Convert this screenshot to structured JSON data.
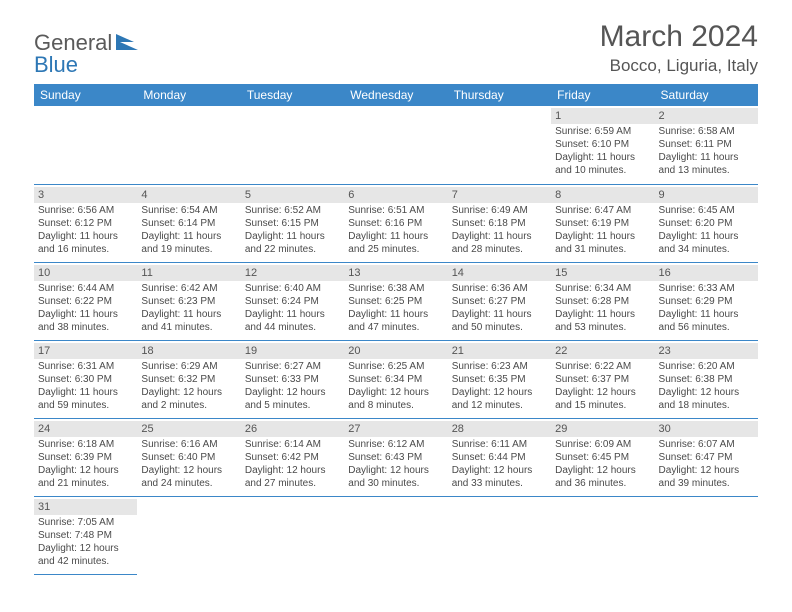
{
  "logo": {
    "text1": "General",
    "text2": "Blue"
  },
  "title": "March 2024",
  "location": "Bocco, Liguria, Italy",
  "colors": {
    "header_bg": "#3b87c8",
    "header_fg": "#ffffff",
    "daynum_bg": "#e6e6e6",
    "border": "#3b87c8",
    "text": "#4a4a4a"
  },
  "weekdays": [
    "Sunday",
    "Monday",
    "Tuesday",
    "Wednesday",
    "Thursday",
    "Friday",
    "Saturday"
  ],
  "weeks": [
    [
      null,
      null,
      null,
      null,
      null,
      {
        "n": "1",
        "sr": "Sunrise: 6:59 AM",
        "ss": "Sunset: 6:10 PM",
        "d1": "Daylight: 11 hours",
        "d2": "and 10 minutes."
      },
      {
        "n": "2",
        "sr": "Sunrise: 6:58 AM",
        "ss": "Sunset: 6:11 PM",
        "d1": "Daylight: 11 hours",
        "d2": "and 13 minutes."
      }
    ],
    [
      {
        "n": "3",
        "sr": "Sunrise: 6:56 AM",
        "ss": "Sunset: 6:12 PM",
        "d1": "Daylight: 11 hours",
        "d2": "and 16 minutes."
      },
      {
        "n": "4",
        "sr": "Sunrise: 6:54 AM",
        "ss": "Sunset: 6:14 PM",
        "d1": "Daylight: 11 hours",
        "d2": "and 19 minutes."
      },
      {
        "n": "5",
        "sr": "Sunrise: 6:52 AM",
        "ss": "Sunset: 6:15 PM",
        "d1": "Daylight: 11 hours",
        "d2": "and 22 minutes."
      },
      {
        "n": "6",
        "sr": "Sunrise: 6:51 AM",
        "ss": "Sunset: 6:16 PM",
        "d1": "Daylight: 11 hours",
        "d2": "and 25 minutes."
      },
      {
        "n": "7",
        "sr": "Sunrise: 6:49 AM",
        "ss": "Sunset: 6:18 PM",
        "d1": "Daylight: 11 hours",
        "d2": "and 28 minutes."
      },
      {
        "n": "8",
        "sr": "Sunrise: 6:47 AM",
        "ss": "Sunset: 6:19 PM",
        "d1": "Daylight: 11 hours",
        "d2": "and 31 minutes."
      },
      {
        "n": "9",
        "sr": "Sunrise: 6:45 AM",
        "ss": "Sunset: 6:20 PM",
        "d1": "Daylight: 11 hours",
        "d2": "and 34 minutes."
      }
    ],
    [
      {
        "n": "10",
        "sr": "Sunrise: 6:44 AM",
        "ss": "Sunset: 6:22 PM",
        "d1": "Daylight: 11 hours",
        "d2": "and 38 minutes."
      },
      {
        "n": "11",
        "sr": "Sunrise: 6:42 AM",
        "ss": "Sunset: 6:23 PM",
        "d1": "Daylight: 11 hours",
        "d2": "and 41 minutes."
      },
      {
        "n": "12",
        "sr": "Sunrise: 6:40 AM",
        "ss": "Sunset: 6:24 PM",
        "d1": "Daylight: 11 hours",
        "d2": "and 44 minutes."
      },
      {
        "n": "13",
        "sr": "Sunrise: 6:38 AM",
        "ss": "Sunset: 6:25 PM",
        "d1": "Daylight: 11 hours",
        "d2": "and 47 minutes."
      },
      {
        "n": "14",
        "sr": "Sunrise: 6:36 AM",
        "ss": "Sunset: 6:27 PM",
        "d1": "Daylight: 11 hours",
        "d2": "and 50 minutes."
      },
      {
        "n": "15",
        "sr": "Sunrise: 6:34 AM",
        "ss": "Sunset: 6:28 PM",
        "d1": "Daylight: 11 hours",
        "d2": "and 53 minutes."
      },
      {
        "n": "16",
        "sr": "Sunrise: 6:33 AM",
        "ss": "Sunset: 6:29 PM",
        "d1": "Daylight: 11 hours",
        "d2": "and 56 minutes."
      }
    ],
    [
      {
        "n": "17",
        "sr": "Sunrise: 6:31 AM",
        "ss": "Sunset: 6:30 PM",
        "d1": "Daylight: 11 hours",
        "d2": "and 59 minutes."
      },
      {
        "n": "18",
        "sr": "Sunrise: 6:29 AM",
        "ss": "Sunset: 6:32 PM",
        "d1": "Daylight: 12 hours",
        "d2": "and 2 minutes."
      },
      {
        "n": "19",
        "sr": "Sunrise: 6:27 AM",
        "ss": "Sunset: 6:33 PM",
        "d1": "Daylight: 12 hours",
        "d2": "and 5 minutes."
      },
      {
        "n": "20",
        "sr": "Sunrise: 6:25 AM",
        "ss": "Sunset: 6:34 PM",
        "d1": "Daylight: 12 hours",
        "d2": "and 8 minutes."
      },
      {
        "n": "21",
        "sr": "Sunrise: 6:23 AM",
        "ss": "Sunset: 6:35 PM",
        "d1": "Daylight: 12 hours",
        "d2": "and 12 minutes."
      },
      {
        "n": "22",
        "sr": "Sunrise: 6:22 AM",
        "ss": "Sunset: 6:37 PM",
        "d1": "Daylight: 12 hours",
        "d2": "and 15 minutes."
      },
      {
        "n": "23",
        "sr": "Sunrise: 6:20 AM",
        "ss": "Sunset: 6:38 PM",
        "d1": "Daylight: 12 hours",
        "d2": "and 18 minutes."
      }
    ],
    [
      {
        "n": "24",
        "sr": "Sunrise: 6:18 AM",
        "ss": "Sunset: 6:39 PM",
        "d1": "Daylight: 12 hours",
        "d2": "and 21 minutes."
      },
      {
        "n": "25",
        "sr": "Sunrise: 6:16 AM",
        "ss": "Sunset: 6:40 PM",
        "d1": "Daylight: 12 hours",
        "d2": "and 24 minutes."
      },
      {
        "n": "26",
        "sr": "Sunrise: 6:14 AM",
        "ss": "Sunset: 6:42 PM",
        "d1": "Daylight: 12 hours",
        "d2": "and 27 minutes."
      },
      {
        "n": "27",
        "sr": "Sunrise: 6:12 AM",
        "ss": "Sunset: 6:43 PM",
        "d1": "Daylight: 12 hours",
        "d2": "and 30 minutes."
      },
      {
        "n": "28",
        "sr": "Sunrise: 6:11 AM",
        "ss": "Sunset: 6:44 PM",
        "d1": "Daylight: 12 hours",
        "d2": "and 33 minutes."
      },
      {
        "n": "29",
        "sr": "Sunrise: 6:09 AM",
        "ss": "Sunset: 6:45 PM",
        "d1": "Daylight: 12 hours",
        "d2": "and 36 minutes."
      },
      {
        "n": "30",
        "sr": "Sunrise: 6:07 AM",
        "ss": "Sunset: 6:47 PM",
        "d1": "Daylight: 12 hours",
        "d2": "and 39 minutes."
      }
    ],
    [
      {
        "n": "31",
        "sr": "Sunrise: 7:05 AM",
        "ss": "Sunset: 7:48 PM",
        "d1": "Daylight: 12 hours",
        "d2": "and 42 minutes."
      },
      null,
      null,
      null,
      null,
      null,
      null
    ]
  ]
}
